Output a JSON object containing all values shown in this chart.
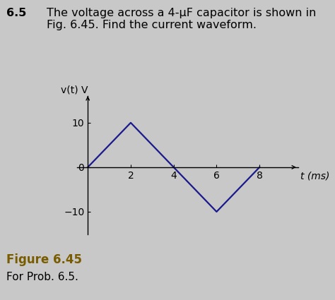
{
  "title_number": "6.5",
  "title_text": "The voltage across a 4-μF capacitor is shown in\nFig. 6.45. Find the current waveform.",
  "figure_label": "Figure 6.45",
  "figure_sublabel": "For Prob. 6.5.",
  "x_data": [
    0,
    2,
    4,
    6,
    8
  ],
  "y_data": [
    0,
    10,
    0,
    -10,
    0
  ],
  "line_color": "#1a1a8c",
  "line_width": 1.6,
  "xlabel": "t (ms)",
  "ylabel": "v(t) V",
  "xticks": [
    2,
    4,
    6,
    8
  ],
  "yticks": [
    -10,
    0,
    10
  ],
  "xlim": [
    -0.5,
    9.8
  ],
  "ylim": [
    -15,
    16
  ],
  "background_color": "#c8c8c8",
  "ax_background": "#c8c8c8",
  "title_fontsize": 11.5,
  "label_fontsize": 10,
  "tick_fontsize": 10,
  "figure_label_color": "#7a5c00",
  "figure_label_fontsize": 12,
  "figure_sublabel_fontsize": 11
}
